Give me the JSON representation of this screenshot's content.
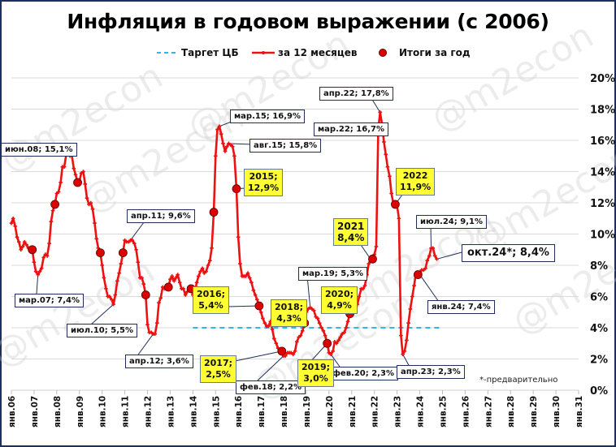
{
  "title": "Инфляция в годовом выражении (с 2006)",
  "watermark": "@m2econ",
  "footnote": "*-предварительно",
  "legend": [
    {
      "label": "Таргет ЦБ",
      "style": "dashed",
      "color": "#33b5e5"
    },
    {
      "label": "за 12 месяцев",
      "style": "line-marker",
      "color": "#ee1111"
    },
    {
      "label": "Итоги за год",
      "style": "dot",
      "color": "#dd0000"
    }
  ],
  "colors": {
    "line": "#ee1111",
    "dot": "#dd0000",
    "target": "#33b5e5",
    "grid": "#d9d9d9",
    "frame": "#1f2f5c",
    "yellow": "#ffff33"
  },
  "chart_data": {
    "type": "line",
    "title": "Инфляция в годовом выражении (с 2006)",
    "xlabel": "",
    "ylabel": "",
    "ylim": [
      0,
      20
    ],
    "y_ticks": [
      "0%",
      "2%",
      "4%",
      "6%",
      "8%",
      "10%",
      "12%",
      "14%",
      "16%",
      "18%",
      "20%"
    ],
    "x_ticks": [
      "янв.06",
      "янв.07",
      "янв.08",
      "янв.09",
      "янв.10",
      "янв.11",
      "янв.12",
      "янв.13",
      "янв.14",
      "янв.15",
      "янв.16",
      "янв.17",
      "янв.18",
      "янв.19",
      "янв.20",
      "янв.21",
      "янв.22",
      "янв.23",
      "янв.24",
      "янв.25",
      "янв.26",
      "янв.27",
      "янв.28",
      "янв.29",
      "янв.30",
      "янв.31"
    ],
    "grid": true,
    "legend_position": "top",
    "series": [
      {
        "name": "за 12 месяцев",
        "points": [
          [
            2006.0,
            10.7
          ],
          [
            2006.08,
            11.0
          ],
          [
            2006.17,
            10.5
          ],
          [
            2006.25,
            9.8
          ],
          [
            2006.33,
            9.5
          ],
          [
            2006.42,
            9.0
          ],
          [
            2006.5,
            9.2
          ],
          [
            2006.58,
            9.5
          ],
          [
            2006.67,
            9.3
          ],
          [
            2006.75,
            9.1
          ],
          [
            2006.83,
            9.0
          ],
          [
            2006.92,
            9.0
          ],
          [
            2007.0,
            8.2
          ],
          [
            2007.08,
            7.6
          ],
          [
            2007.17,
            7.4
          ],
          [
            2007.25,
            7.6
          ],
          [
            2007.33,
            7.8
          ],
          [
            2007.42,
            8.5
          ],
          [
            2007.5,
            8.7
          ],
          [
            2007.58,
            8.6
          ],
          [
            2007.67,
            9.4
          ],
          [
            2007.75,
            10.8
          ],
          [
            2007.83,
            11.5
          ],
          [
            2007.92,
            11.9
          ],
          [
            2008.0,
            12.6
          ],
          [
            2008.08,
            12.7
          ],
          [
            2008.17,
            13.3
          ],
          [
            2008.25,
            14.3
          ],
          [
            2008.33,
            14.3
          ],
          [
            2008.42,
            15.1
          ],
          [
            2008.5,
            15.1
          ],
          [
            2008.58,
            15.0
          ],
          [
            2008.67,
            15.0
          ],
          [
            2008.75,
            14.2
          ],
          [
            2008.83,
            13.8
          ],
          [
            2008.92,
            13.3
          ],
          [
            2009.0,
            13.4
          ],
          [
            2009.08,
            13.9
          ],
          [
            2009.17,
            14.0
          ],
          [
            2009.25,
            13.2
          ],
          [
            2009.33,
            12.3
          ],
          [
            2009.42,
            11.9
          ],
          [
            2009.5,
            12.0
          ],
          [
            2009.58,
            11.6
          ],
          [
            2009.67,
            10.7
          ],
          [
            2009.75,
            9.7
          ],
          [
            2009.83,
            9.1
          ],
          [
            2009.92,
            8.8
          ],
          [
            2010.0,
            8.0
          ],
          [
            2010.08,
            7.2
          ],
          [
            2010.17,
            6.5
          ],
          [
            2010.25,
            6.0
          ],
          [
            2010.33,
            6.0
          ],
          [
            2010.42,
            5.8
          ],
          [
            2010.5,
            5.5
          ],
          [
            2010.58,
            6.1
          ],
          [
            2010.67,
            7.0
          ],
          [
            2010.75,
            7.5
          ],
          [
            2010.83,
            8.1
          ],
          [
            2010.92,
            8.8
          ],
          [
            2011.0,
            9.6
          ],
          [
            2011.08,
            9.5
          ],
          [
            2011.17,
            9.5
          ],
          [
            2011.25,
            9.6
          ],
          [
            2011.33,
            9.6
          ],
          [
            2011.42,
            9.4
          ],
          [
            2011.5,
            9.0
          ],
          [
            2011.58,
            8.2
          ],
          [
            2011.67,
            7.2
          ],
          [
            2011.75,
            7.2
          ],
          [
            2011.83,
            6.8
          ],
          [
            2011.92,
            6.1
          ],
          [
            2012.0,
            4.2
          ],
          [
            2012.08,
            3.7
          ],
          [
            2012.17,
            3.7
          ],
          [
            2012.25,
            3.6
          ],
          [
            2012.33,
            3.6
          ],
          [
            2012.42,
            4.3
          ],
          [
            2012.5,
            5.6
          ],
          [
            2012.58,
            5.9
          ],
          [
            2012.67,
            6.6
          ],
          [
            2012.75,
            6.5
          ],
          [
            2012.83,
            6.5
          ],
          [
            2012.92,
            6.6
          ],
          [
            2013.0,
            7.1
          ],
          [
            2013.08,
            7.3
          ],
          [
            2013.17,
            7.0
          ],
          [
            2013.25,
            7.2
          ],
          [
            2013.33,
            7.4
          ],
          [
            2013.42,
            6.9
          ],
          [
            2013.5,
            6.5
          ],
          [
            2013.58,
            6.5
          ],
          [
            2013.67,
            6.1
          ],
          [
            2013.75,
            6.3
          ],
          [
            2013.83,
            6.5
          ],
          [
            2013.92,
            6.5
          ],
          [
            2014.0,
            6.1
          ],
          [
            2014.08,
            6.2
          ],
          [
            2014.17,
            6.9
          ],
          [
            2014.25,
            7.3
          ],
          [
            2014.33,
            7.6
          ],
          [
            2014.42,
            7.8
          ],
          [
            2014.5,
            7.5
          ],
          [
            2014.58,
            7.6
          ],
          [
            2014.67,
            8.0
          ],
          [
            2014.75,
            8.3
          ],
          [
            2014.83,
            9.1
          ],
          [
            2014.92,
            11.4
          ],
          [
            2015.0,
            15.0
          ],
          [
            2015.08,
            16.7
          ],
          [
            2015.17,
            16.9
          ],
          [
            2015.25,
            16.4
          ],
          [
            2015.33,
            15.8
          ],
          [
            2015.42,
            15.3
          ],
          [
            2015.5,
            15.6
          ],
          [
            2015.58,
            15.8
          ],
          [
            2015.67,
            15.7
          ],
          [
            2015.75,
            15.6
          ],
          [
            2015.83,
            15.0
          ],
          [
            2015.92,
            12.9
          ],
          [
            2016.0,
            9.8
          ],
          [
            2016.08,
            8.1
          ],
          [
            2016.17,
            7.3
          ],
          [
            2016.25,
            7.3
          ],
          [
            2016.33,
            7.3
          ],
          [
            2016.42,
            7.5
          ],
          [
            2016.5,
            7.2
          ],
          [
            2016.58,
            6.9
          ],
          [
            2016.67,
            6.4
          ],
          [
            2016.75,
            6.1
          ],
          [
            2016.83,
            5.8
          ],
          [
            2016.92,
            5.4
          ],
          [
            2017.0,
            5.0
          ],
          [
            2017.08,
            4.6
          ],
          [
            2017.17,
            4.3
          ],
          [
            2017.25,
            4.1
          ],
          [
            2017.33,
            4.1
          ],
          [
            2017.42,
            4.4
          ],
          [
            2017.5,
            3.9
          ],
          [
            2017.58,
            3.3
          ],
          [
            2017.67,
            3.0
          ],
          [
            2017.75,
            2.7
          ],
          [
            2017.83,
            2.5
          ],
          [
            2017.92,
            2.5
          ],
          [
            2018.0,
            2.2
          ],
          [
            2018.08,
            2.2
          ],
          [
            2018.17,
            2.4
          ],
          [
            2018.25,
            2.4
          ],
          [
            2018.33,
            2.4
          ],
          [
            2018.42,
            2.3
          ],
          [
            2018.5,
            2.5
          ],
          [
            2018.58,
            3.1
          ],
          [
            2018.67,
            3.4
          ],
          [
            2018.75,
            3.5
          ],
          [
            2018.83,
            3.8
          ],
          [
            2018.92,
            4.3
          ],
          [
            2019.0,
            5.0
          ],
          [
            2019.08,
            5.2
          ],
          [
            2019.17,
            5.3
          ],
          [
            2019.25,
            5.2
          ],
          [
            2019.33,
            5.1
          ],
          [
            2019.42,
            4.7
          ],
          [
            2019.5,
            4.6
          ],
          [
            2019.58,
            4.3
          ],
          [
            2019.67,
            4.0
          ],
          [
            2019.75,
            3.8
          ],
          [
            2019.83,
            3.5
          ],
          [
            2019.92,
            3.0
          ],
          [
            2020.0,
            2.4
          ],
          [
            2020.08,
            2.3
          ],
          [
            2020.17,
            2.5
          ],
          [
            2020.25,
            3.1
          ],
          [
            2020.33,
            3.0
          ],
          [
            2020.42,
            3.2
          ],
          [
            2020.5,
            3.4
          ],
          [
            2020.58,
            3.6
          ],
          [
            2020.67,
            3.7
          ],
          [
            2020.75,
            4.0
          ],
          [
            2020.83,
            4.4
          ],
          [
            2020.92,
            4.9
          ],
          [
            2021.0,
            5.2
          ],
          [
            2021.08,
            5.7
          ],
          [
            2021.17,
            5.8
          ],
          [
            2021.25,
            5.5
          ],
          [
            2021.33,
            6.0
          ],
          [
            2021.42,
            6.5
          ],
          [
            2021.5,
            6.5
          ],
          [
            2021.58,
            6.7
          ],
          [
            2021.67,
            7.4
          ],
          [
            2021.75,
            8.1
          ],
          [
            2021.83,
            8.4
          ],
          [
            2021.92,
            8.4
          ],
          [
            2022.0,
            8.7
          ],
          [
            2022.08,
            9.2
          ],
          [
            2022.17,
            16.7
          ],
          [
            2022.25,
            17.8
          ],
          [
            2022.33,
            17.1
          ],
          [
            2022.42,
            15.9
          ],
          [
            2022.5,
            15.1
          ],
          [
            2022.58,
            14.3
          ],
          [
            2022.67,
            13.7
          ],
          [
            2022.75,
            12.6
          ],
          [
            2022.83,
            12.0
          ],
          [
            2022.92,
            11.9
          ],
          [
            2023.0,
            11.8
          ],
          [
            2023.08,
            11.0
          ],
          [
            2023.17,
            3.5
          ],
          [
            2023.25,
            2.3
          ],
          [
            2023.33,
            2.5
          ],
          [
            2023.42,
            3.2
          ],
          [
            2023.5,
            4.3
          ],
          [
            2023.58,
            5.2
          ],
          [
            2023.67,
            6.0
          ],
          [
            2023.75,
            6.7
          ],
          [
            2023.83,
            7.5
          ],
          [
            2023.92,
            7.4
          ],
          [
            2024.0,
            7.4
          ],
          [
            2024.08,
            7.7
          ],
          [
            2024.17,
            7.7
          ],
          [
            2024.25,
            7.8
          ],
          [
            2024.33,
            8.3
          ],
          [
            2024.42,
            8.6
          ],
          [
            2024.5,
            9.1
          ],
          [
            2024.58,
            9.1
          ],
          [
            2024.67,
            8.6
          ],
          [
            2024.75,
            8.4
          ]
        ]
      },
      {
        "name": "Итоги за год",
        "categories": [
          "2006",
          "2007",
          "2008",
          "2009",
          "2010",
          "2011",
          "2012",
          "2013",
          "2014",
          "2015",
          "2016",
          "2017",
          "2018",
          "2019",
          "2020",
          "2021",
          "2022",
          "2023"
        ],
        "values": [
          9.0,
          11.9,
          13.3,
          8.8,
          8.8,
          6.1,
          6.6,
          6.5,
          11.4,
          12.9,
          5.4,
          2.5,
          4.3,
          3.0,
          4.9,
          8.4,
          11.9,
          7.4
        ]
      },
      {
        "name": "Таргет ЦБ",
        "x_range": [
          "янв.14",
          "янв.25"
        ],
        "value": 4.0
      }
    ],
    "annotations": [
      {
        "text": "июн.08; 15,1%",
        "style": "white"
      },
      {
        "text": "мар.07; 7,4%",
        "style": "white"
      },
      {
        "text": "июл.10; 5,5%",
        "style": "white"
      },
      {
        "text": "апр.11; 9,6%",
        "style": "white"
      },
      {
        "text": "апр.12; 3,6%",
        "style": "white"
      },
      {
        "text": "мар.15; 16,9%",
        "style": "white"
      },
      {
        "text": "авг.15; 15,8%",
        "style": "white"
      },
      {
        "text": "фев.18; 2,2%",
        "style": "white"
      },
      {
        "text": "мар.19; 5,3%",
        "style": "white"
      },
      {
        "text": "фев.20; 2,3%",
        "style": "white"
      },
      {
        "text": "апр.22; 17,8%",
        "style": "white"
      },
      {
        "text": "мар.22; 16,7%",
        "style": "white"
      },
      {
        "text": "апр.23; 2,3%",
        "style": "white"
      },
      {
        "text": "июл.24; 9,1%",
        "style": "white"
      },
      {
        "text": "янв.24; 7,4%",
        "style": "white"
      },
      {
        "text": "окт.24*; 8,4%",
        "style": "white-large"
      },
      {
        "text": "2015; 12,9%",
        "style": "yellow"
      },
      {
        "text": "2016; 5,4%",
        "style": "yellow"
      },
      {
        "text": "2017; 2,5%",
        "style": "yellow"
      },
      {
        "text": "2018; 4,3%",
        "style": "yellow"
      },
      {
        "text": "2019; 3,0%",
        "style": "yellow"
      },
      {
        "text": "2020; 4,9%",
        "style": "yellow"
      },
      {
        "text": "2021 8,4%",
        "style": "yellow"
      },
      {
        "text": "2022 11,9%",
        "style": "yellow"
      }
    ]
  },
  "callouts": {
    "jun08": "июн.08; 15,1%",
    "mar07": "мар.07; 7,4%",
    "jul10": "июл.10; 5,5%",
    "apr11": "апр.11; 9,6%",
    "apr12": "апр.12; 3,6%",
    "mar15": "мар.15; 16,9%",
    "aug15": "авг.15; 15,8%",
    "feb18": "фев.18; 2,2%",
    "mar19": "мар.19; 5,3%",
    "feb20": "фев.20; 2,3%",
    "apr22": "апр.22; 17,8%",
    "mar22": "мар.22; 16,7%",
    "apr23": "апр.23; 2,3%",
    "jul24": "июл.24; 9,1%",
    "jan24": "янв.24; 7,4%",
    "oct24": "окт.24*; 8,4%",
    "y2015_a": "2015;",
    "y2015_b": "12,9%",
    "y2016_a": "2016;",
    "y2016_b": "5,4%",
    "y2017_a": "2017;",
    "y2017_b": "2,5%",
    "y2018_a": "2018;",
    "y2018_b": "4,3%",
    "y2019_a": "2019;",
    "y2019_b": "3,0%",
    "y2020_a": "2020;",
    "y2020_b": "4,9%",
    "y2021_a": "2021",
    "y2021_b": "8,4%",
    "y2022_a": "2022",
    "y2022_b": "11,9%"
  }
}
